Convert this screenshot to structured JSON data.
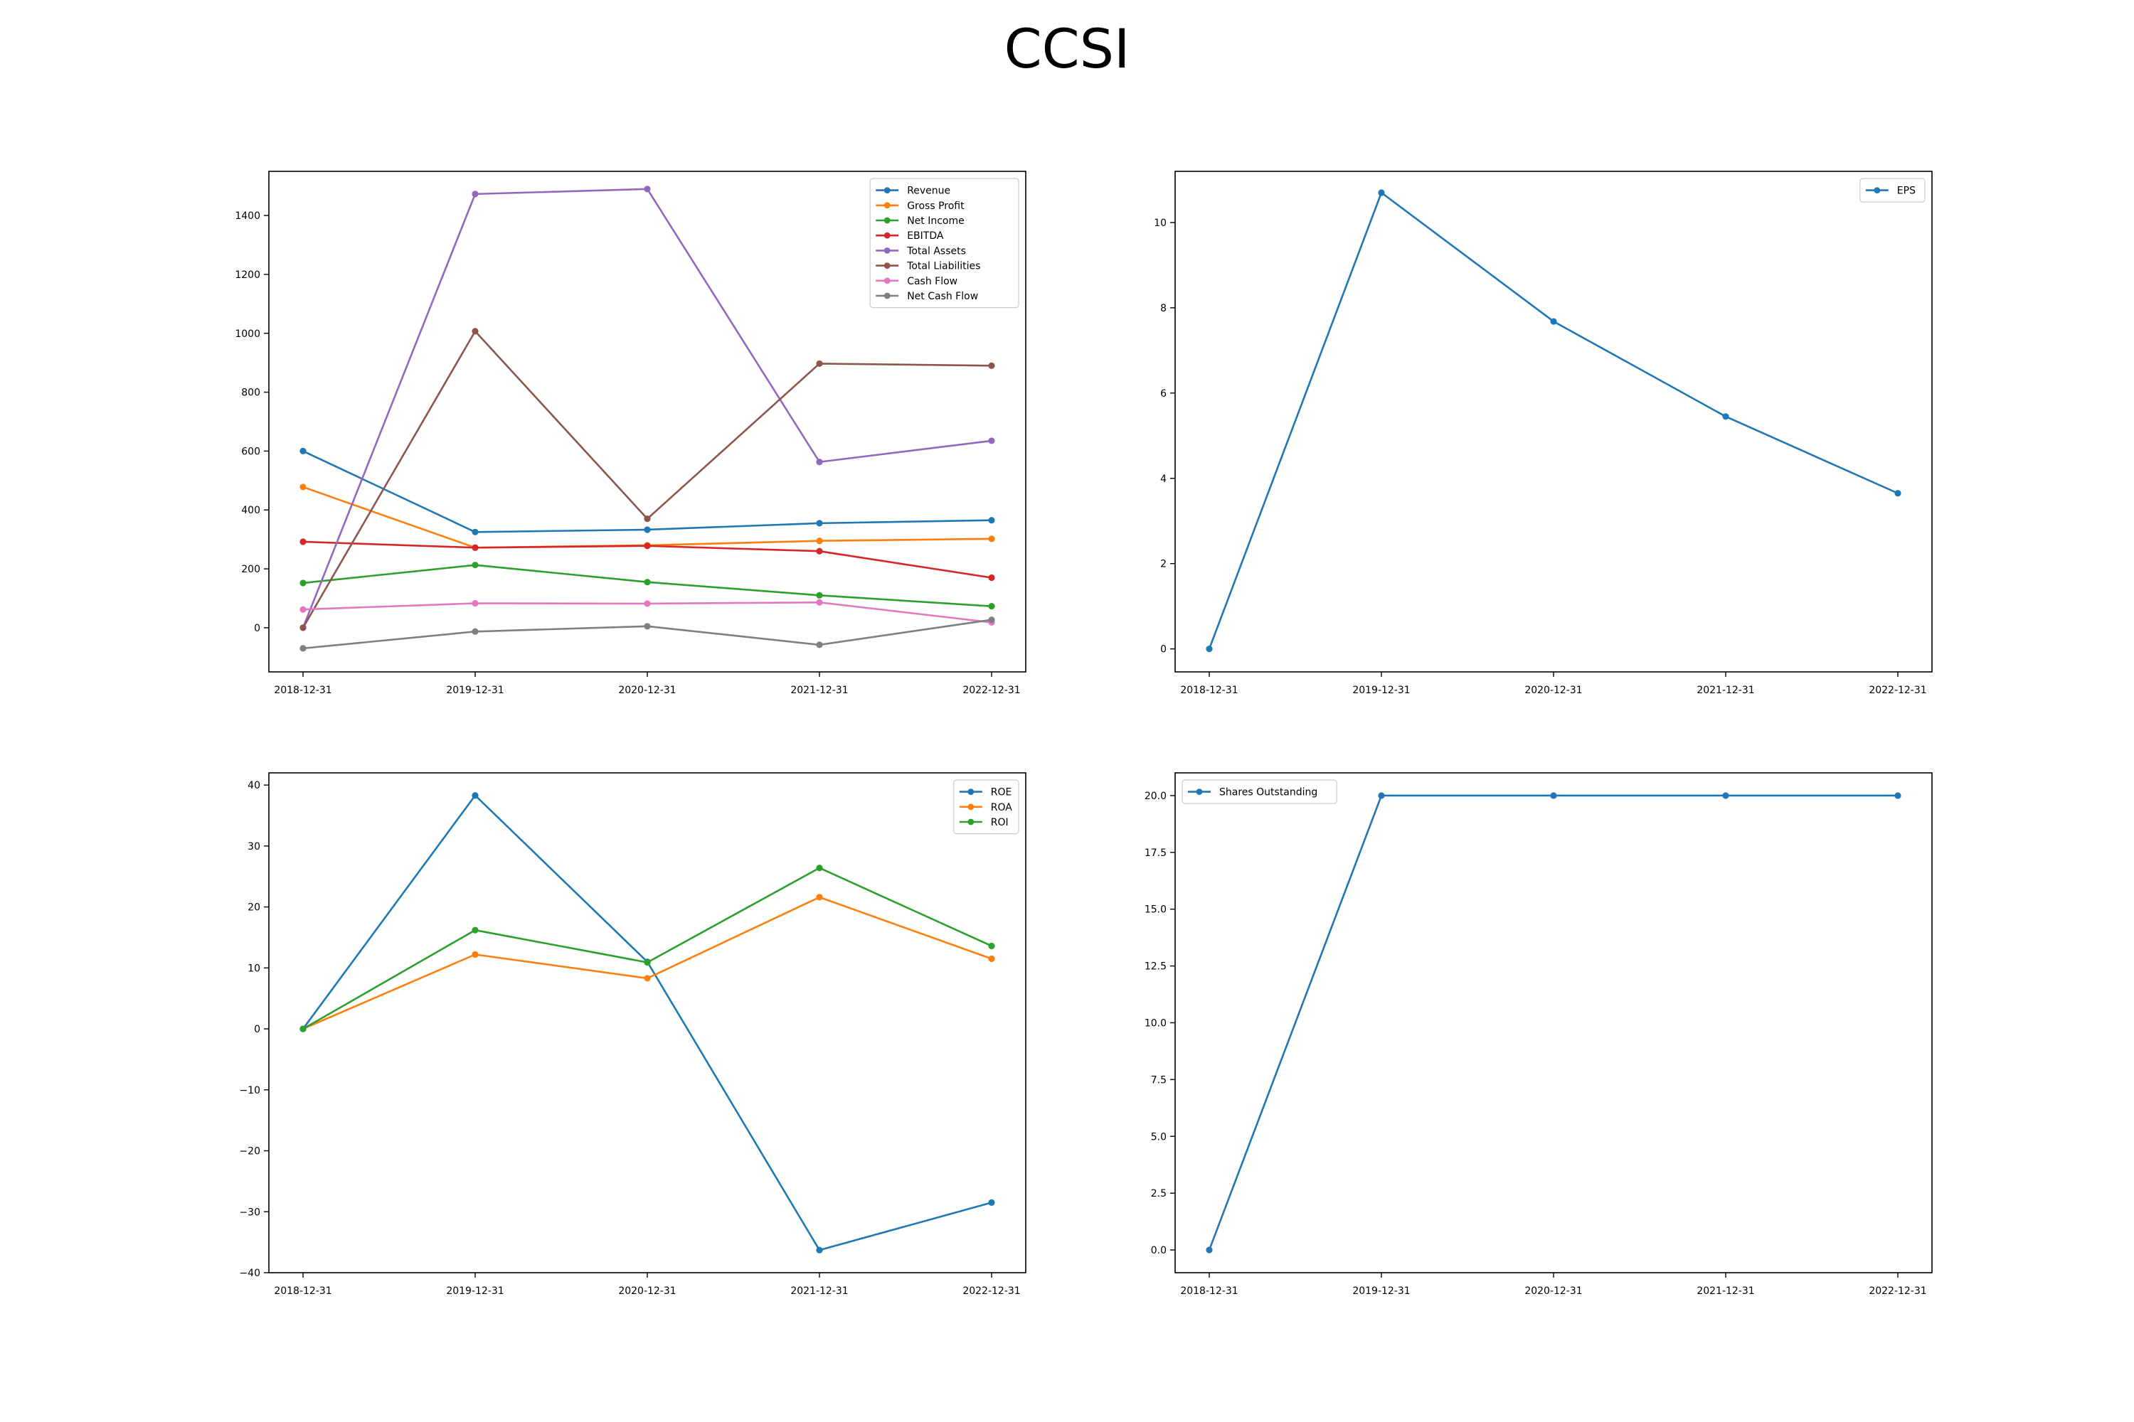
{
  "figure": {
    "title": "CCSI"
  },
  "colors": {
    "blue": "#1f77b4",
    "orange": "#ff7f0e",
    "green": "#2ca02c",
    "red": "#d62728",
    "purple": "#9467bd",
    "brown": "#8c564b",
    "pink": "#e377c2",
    "gray": "#7f7f7f"
  },
  "chart_data": [
    {
      "type": "line",
      "title": "",
      "xlabel": "",
      "ylabel": "",
      "x": [
        "2018-12-31",
        "2019-12-31",
        "2020-12-31",
        "2021-12-31",
        "2022-12-31"
      ],
      "ylim": [
        -150,
        1550
      ],
      "yticks": [
        0,
        200,
        400,
        600,
        800,
        1000,
        1200,
        1400
      ],
      "ytick_labels": [
        "0",
        "200",
        "400",
        "600",
        "800",
        "1000",
        "1200",
        "1400"
      ],
      "grid": false,
      "legend": "top-right",
      "series": [
        {
          "name": "Revenue",
          "color": "#1f77b4",
          "values": [
            600,
            325,
            333,
            355,
            365
          ]
        },
        {
          "name": "Gross Profit",
          "color": "#ff7f0e",
          "values": [
            478,
            272,
            280,
            295,
            302
          ]
        },
        {
          "name": "Net Income",
          "color": "#2ca02c",
          "values": [
            152,
            213,
            155,
            110,
            73
          ]
        },
        {
          "name": "EBITDA",
          "color": "#d62728",
          "values": [
            292,
            272,
            278,
            260,
            170
          ]
        },
        {
          "name": "Total Assets",
          "color": "#9467bd",
          "values": [
            0,
            1473,
            1490,
            563,
            635
          ]
        },
        {
          "name": "Total Liabilities",
          "color": "#8c564b",
          "values": [
            0,
            1007,
            370,
            897,
            890
          ]
        },
        {
          "name": "Cash Flow",
          "color": "#e377c2",
          "values": [
            62,
            83,
            82,
            86,
            18
          ]
        },
        {
          "name": "Net Cash Flow",
          "color": "#7f7f7f",
          "values": [
            -70,
            -13,
            5,
            -58,
            27
          ]
        }
      ]
    },
    {
      "type": "line",
      "title": "",
      "xlabel": "",
      "ylabel": "",
      "x": [
        "2018-12-31",
        "2019-12-31",
        "2020-12-31",
        "2021-12-31",
        "2022-12-31"
      ],
      "ylim": [
        -0.54,
        11.2
      ],
      "yticks": [
        0,
        2,
        4,
        6,
        8,
        10
      ],
      "ytick_labels": [
        "0",
        "2",
        "4",
        "6",
        "8",
        "10"
      ],
      "grid": false,
      "legend": "top-right",
      "series": [
        {
          "name": "EPS",
          "color": "#1f77b4",
          "values": [
            0,
            10.7,
            7.68,
            5.45,
            3.65
          ]
        }
      ]
    },
    {
      "type": "line",
      "title": "",
      "xlabel": "",
      "ylabel": "",
      "x": [
        "2018-12-31",
        "2019-12-31",
        "2020-12-31",
        "2021-12-31",
        "2022-12-31"
      ],
      "ylim": [
        -40,
        42
      ],
      "yticks": [
        -40,
        -30,
        -20,
        -10,
        0,
        10,
        20,
        30,
        40
      ],
      "ytick_labels": [
        "−40",
        "−30",
        "−20",
        "−10",
        "0",
        "10",
        "20",
        "30",
        "40"
      ],
      "grid": false,
      "legend": "top-right",
      "series": [
        {
          "name": "ROE",
          "color": "#1f77b4",
          "values": [
            0,
            38.3,
            11.0,
            -36.3,
            -28.5
          ]
        },
        {
          "name": "ROA",
          "color": "#ff7f0e",
          "values": [
            0,
            12.2,
            8.3,
            21.6,
            11.5
          ]
        },
        {
          "name": "ROI",
          "color": "#2ca02c",
          "values": [
            0,
            16.2,
            10.9,
            26.4,
            13.6
          ]
        }
      ]
    },
    {
      "type": "line",
      "title": "",
      "xlabel": "",
      "ylabel": "",
      "x": [
        "2018-12-31",
        "2019-12-31",
        "2020-12-31",
        "2021-12-31",
        "2022-12-31"
      ],
      "ylim": [
        -1.0,
        21.0
      ],
      "yticks": [
        0,
        2.5,
        5,
        7.5,
        10,
        12.5,
        15,
        17.5,
        20
      ],
      "ytick_labels": [
        "0.0",
        "2.5",
        "5.0",
        "7.5",
        "10.0",
        "12.5",
        "15.0",
        "17.5",
        "20.0"
      ],
      "grid": false,
      "legend": "top-left",
      "series": [
        {
          "name": "Shares Outstanding",
          "color": "#1f77b4",
          "values": [
            0,
            20,
            20,
            20,
            20
          ]
        }
      ]
    }
  ]
}
